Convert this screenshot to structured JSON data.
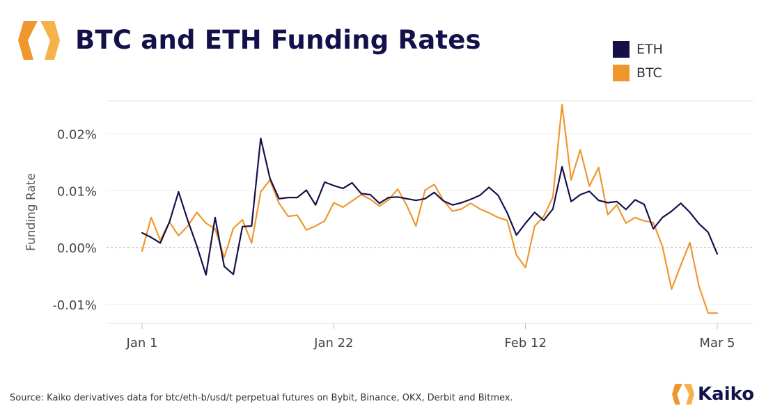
{
  "header": {
    "title": "BTC and ETH Funding Rates"
  },
  "footer": {
    "source": "Source: Kaiko derivatives data for btc/eth-b/usd/t perpetual futures on Bybit, Binance, OKX, Derbit and Bitmex.",
    "brand": "Kaiko"
  },
  "colors": {
    "eth": "#14114a",
    "btc": "#f0962e",
    "brand_orange": "#f0962e"
  },
  "icons": {
    "logo": "kaiko-logo-icon",
    "brand": "kaiko-brand-icon"
  },
  "chart_data": {
    "type": "line",
    "title": "BTC and ETH Funding Rates",
    "xlabel": "",
    "ylabel": "Funding Rate",
    "x": [
      "Jan 1",
      "Jan 2",
      "Jan 3",
      "Jan 4",
      "Jan 5",
      "Jan 6",
      "Jan 7",
      "Jan 8",
      "Jan 9",
      "Jan 10",
      "Jan 11",
      "Jan 12",
      "Jan 13",
      "Jan 14",
      "Jan 15",
      "Jan 16",
      "Jan 17",
      "Jan 18",
      "Jan 19",
      "Jan 20",
      "Jan 21",
      "Jan 22",
      "Jan 23",
      "Jan 24",
      "Jan 25",
      "Jan 26",
      "Jan 27",
      "Jan 28",
      "Jan 29",
      "Jan 30",
      "Jan 31",
      "Feb 1",
      "Feb 2",
      "Feb 3",
      "Feb 4",
      "Feb 5",
      "Feb 6",
      "Feb 7",
      "Feb 8",
      "Feb 9",
      "Feb 10",
      "Feb 11",
      "Feb 12",
      "Feb 13",
      "Feb 14",
      "Feb 15",
      "Feb 16",
      "Feb 17",
      "Feb 18",
      "Feb 19",
      "Feb 20",
      "Feb 21",
      "Feb 22",
      "Feb 23",
      "Feb 24",
      "Feb 25",
      "Feb 26",
      "Feb 27",
      "Feb 28",
      "Mar 1",
      "Mar 2",
      "Mar 3",
      "Mar 4",
      "Mar 5"
    ],
    "x_ticks": [
      "Jan 1",
      "Jan 22",
      "Feb 12",
      "Mar 5"
    ],
    "y_ticks": [
      -0.01,
      0.0,
      0.01,
      0.02
    ],
    "y_tick_labels": [
      "-0.01%",
      "0.00%",
      "0.01%",
      "0.02%"
    ],
    "ylim": [
      -0.0133,
      0.0258
    ],
    "grid": true,
    "legend_position": "top-right",
    "series": [
      {
        "name": "ETH",
        "color": "#14114a",
        "values": [
          0.0026,
          0.0018,
          0.0008,
          0.0045,
          0.0098,
          0.0048,
          0.0003,
          -0.0048,
          0.0053,
          -0.0033,
          -0.0047,
          0.0037,
          0.0038,
          0.0192,
          0.0122,
          0.0086,
          0.0088,
          0.0088,
          0.0101,
          0.0075,
          0.0115,
          0.0109,
          0.0104,
          0.0114,
          0.0095,
          0.0093,
          0.0078,
          0.0088,
          0.0089,
          0.0086,
          0.0083,
          0.0086,
          0.0097,
          0.0082,
          0.0075,
          0.0079,
          0.0085,
          0.0092,
          0.0106,
          0.0092,
          0.0061,
          0.0022,
          0.0043,
          0.0062,
          0.0048,
          0.0068,
          0.0142,
          0.0081,
          0.0093,
          0.0099,
          0.0083,
          0.0079,
          0.0081,
          0.0067,
          0.0084,
          0.0076,
          0.0033,
          0.0053,
          0.0064,
          0.0078,
          0.0062,
          0.0042,
          0.0027,
          -0.0011
        ]
      },
      {
        "name": "BTC",
        "color": "#f0962e",
        "values": [
          -0.0006,
          0.0053,
          0.0013,
          0.0045,
          0.0021,
          0.0038,
          0.0062,
          0.0043,
          0.0033,
          -0.0017,
          0.0034,
          0.0049,
          0.0008,
          0.0098,
          0.0119,
          0.0078,
          0.0055,
          0.0057,
          0.0031,
          0.0038,
          0.0047,
          0.0079,
          0.0071,
          0.0082,
          0.0093,
          0.0085,
          0.0073,
          0.0084,
          0.0103,
          0.0074,
          0.0038,
          0.0101,
          0.0111,
          0.0083,
          0.0064,
          0.0068,
          0.0078,
          0.0068,
          0.0061,
          0.0053,
          0.0048,
          -0.0013,
          -0.0035,
          0.0038,
          0.0055,
          0.0089,
          0.0251,
          0.0119,
          0.0172,
          0.0108,
          0.0141,
          0.0058,
          0.0075,
          0.0043,
          0.0053,
          0.0047,
          0.0044,
          0.0002,
          -0.0073,
          -0.0031,
          0.0009,
          -0.0068,
          -0.0115,
          -0.0115
        ]
      }
    ]
  }
}
